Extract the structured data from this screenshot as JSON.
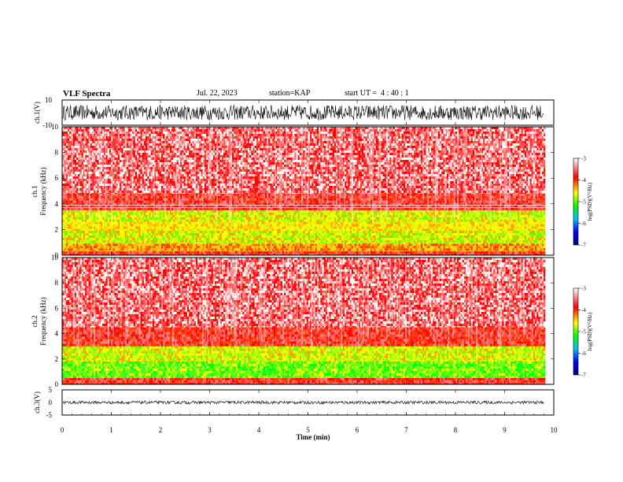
{
  "header": {
    "title": "VLF Spectra",
    "date": "Jul. 22, 2023",
    "station": "station=KAP",
    "start": "start UT =  4 : 40 : 1"
  },
  "chart_data": [
    {
      "type": "line",
      "name": "ch1-waveform",
      "ylabel": "ch.1(V)",
      "ylim": [
        -10,
        10
      ],
      "yticks": [
        "10",
        "-10"
      ],
      "xlim": [
        0,
        10
      ],
      "data_extent": [
        0,
        9.8
      ],
      "amplitude_band": [
        -6,
        6
      ]
    },
    {
      "type": "heatmap",
      "name": "ch1-spectrogram",
      "ylabel_line1": "ch.1",
      "ylabel_line2": "Frequency (kHz)",
      "ylim": [
        0,
        10
      ],
      "yticks": [
        "0",
        "2",
        "4",
        "6",
        "8",
        "10"
      ],
      "xlim": [
        0,
        10
      ],
      "data_extent": [
        0,
        9.8
      ],
      "bands": [
        {
          "from": 0.0,
          "to": 0.3,
          "level": "red"
        },
        {
          "from": 0.3,
          "to": 0.9,
          "level": "orange"
        },
        {
          "from": 0.9,
          "to": 1.9,
          "level": "yellow-green"
        },
        {
          "from": 1.9,
          "to": 2.6,
          "level": "yellow"
        },
        {
          "from": 2.6,
          "to": 3.5,
          "level": "yellow-green"
        },
        {
          "from": 3.5,
          "to": 4.8,
          "level": "red"
        },
        {
          "from": 4.8,
          "to": 10.0,
          "level": "light-red"
        }
      ],
      "lines_khz": [
        3.7,
        3.9
      ]
    },
    {
      "type": "heatmap",
      "name": "ch2-spectrogram",
      "ylabel_line1": "ch.2",
      "ylabel_line2": "Frequency (kHz)",
      "ylim": [
        0,
        10
      ],
      "yticks": [
        "0",
        "2",
        "4",
        "6",
        "8",
        "10"
      ],
      "xlim": [
        0,
        10
      ],
      "data_extent": [
        0,
        9.8
      ],
      "bands": [
        {
          "from": 0.0,
          "to": 0.5,
          "level": "red"
        },
        {
          "from": 0.5,
          "to": 1.8,
          "level": "green"
        },
        {
          "from": 1.8,
          "to": 3.0,
          "level": "yellow-green"
        },
        {
          "from": 3.0,
          "to": 4.5,
          "level": "red"
        },
        {
          "from": 4.5,
          "to": 10.0,
          "level": "light-red"
        }
      ],
      "lines_khz": []
    },
    {
      "type": "line",
      "name": "ch3-waveform",
      "ylabel": "ch.3(V)",
      "ylim": [
        -5,
        5
      ],
      "yticks": [
        "5",
        "0",
        "-5"
      ],
      "xlim": [
        0,
        10
      ],
      "data_extent": [
        0,
        9.8
      ],
      "amplitude_band": [
        -0.6,
        0.6
      ]
    }
  ],
  "colorbar": {
    "label": "log(PSD)(V²/Hz)",
    "range": [
      -7,
      -3
    ],
    "ticks": [
      "-3",
      "-4",
      "-5",
      "-6",
      "-7"
    ],
    "colors": [
      "#000080",
      "#0000ff",
      "#00bfff",
      "#00ff00",
      "#ffff00",
      "#ff0000",
      "#ffffff"
    ]
  },
  "xaxis": {
    "label": "Time (min)",
    "ticks": [
      "0",
      "1",
      "2",
      "3",
      "4",
      "5",
      "6",
      "7",
      "8",
      "9",
      "10"
    ],
    "range": [
      0,
      10
    ]
  }
}
